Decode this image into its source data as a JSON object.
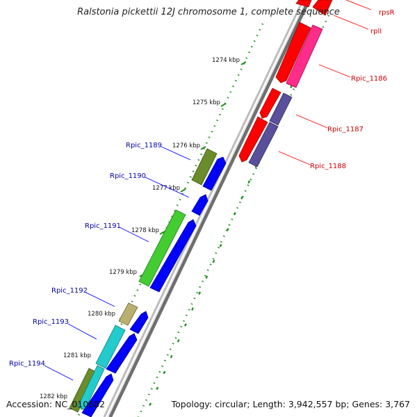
{
  "title": "Ralstonia pickettii 12J chromosome 1, complete sequence",
  "accession": "Accession: NC_010682",
  "topology": "Topology: circular; Length: 3,942,557 bp; Genes: 3,767",
  "ticks": [
    {
      "label": "1274 kbp"
    },
    {
      "label": "1275 kbp"
    },
    {
      "label": "1276 kbp"
    },
    {
      "label": "1277 kbp"
    },
    {
      "label": "1278 kbp"
    },
    {
      "label": "1279 kbp"
    },
    {
      "label": "1280 kbp"
    },
    {
      "label": "1281 kbp"
    },
    {
      "label": "1282 kbp"
    }
  ],
  "genes_right": [
    {
      "label": "rpsR",
      "color": "#cc0000"
    },
    {
      "label": "rplI",
      "color": "#cc0000"
    },
    {
      "label": "Rpic_1186",
      "color": "#cc0000"
    },
    {
      "label": "Rpic_1187",
      "color": "#cc0000"
    },
    {
      "label": "Rpic_1188",
      "color": "#cc0000"
    }
  ],
  "genes_left": [
    {
      "label": "Rpic_1189",
      "color": "#0000aa"
    },
    {
      "label": "Rpic_1190",
      "color": "#0000aa"
    },
    {
      "label": "Rpic_1191",
      "color": "#0000aa"
    },
    {
      "label": "Rpic_1192",
      "color": "#0000aa"
    },
    {
      "label": "Rpic_1193",
      "color": "#0000aa"
    },
    {
      "label": "Rpic_1194",
      "color": "#0000aa"
    }
  ],
  "colors": {
    "backbone": "#9a9a9a",
    "forward_strand": "#0000ff",
    "reverse_strand": "#ff0000",
    "pink": "#ff2d8a",
    "slate": "#5a4f9a",
    "olive": "#6b8c2a",
    "green": "#44cc33",
    "khaki": "#b9b070",
    "cyan": "#22cccc",
    "gc_dots": "#1f8f1f"
  }
}
